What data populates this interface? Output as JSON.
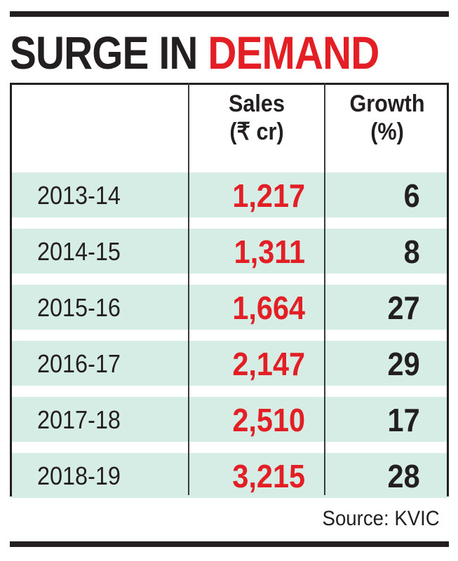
{
  "title": {
    "part1": "SURGE IN ",
    "part2": "DEMAND"
  },
  "colors": {
    "accent_red": "#e31e24",
    "text_dark": "#231f20",
    "row_band": "#d6ede6"
  },
  "chart_data": {
    "type": "table",
    "title": "SURGE IN DEMAND",
    "columns": [
      {
        "key": "year",
        "label": ""
      },
      {
        "key": "sales",
        "label_line1": "Sales",
        "label_line2": "(₹ cr)"
      },
      {
        "key": "growth",
        "label_line1": "Growth",
        "label_line2": "(%)"
      }
    ],
    "rows": [
      {
        "year": "2013-14",
        "sales": "1,217",
        "growth": "6"
      },
      {
        "year": "2014-15",
        "sales": "1,311",
        "growth": "8"
      },
      {
        "year": "2015-16",
        "sales": "1,664",
        "growth": "27"
      },
      {
        "year": "2016-17",
        "sales": "2,147",
        "growth": "29"
      },
      {
        "year": "2017-18",
        "sales": "2,510",
        "growth": "17"
      },
      {
        "year": "2018-19",
        "sales": "3,215",
        "growth": "28"
      }
    ],
    "source": "Source: KVIC"
  }
}
